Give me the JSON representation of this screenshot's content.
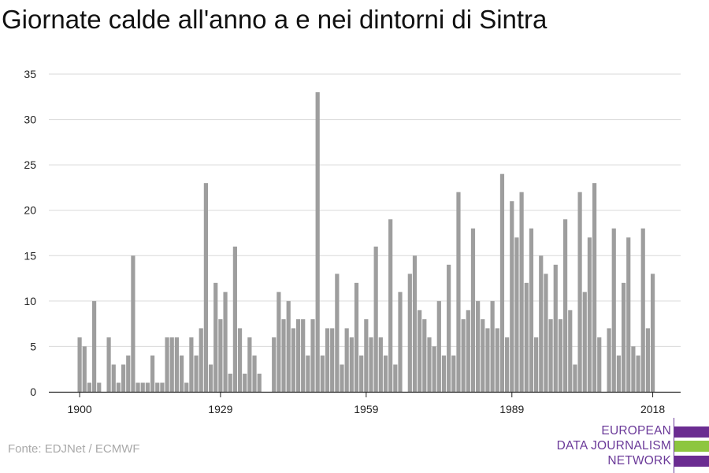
{
  "chart_data": {
    "type": "bar",
    "title": "Giornate calde all'anno a e nei dintorni di Sintra",
    "xlabel": "",
    "ylabel": "",
    "ylim": [
      0,
      35
    ],
    "yticks": [
      0,
      5,
      10,
      15,
      20,
      25,
      30,
      35
    ],
    "xticks": [
      1900,
      1929,
      1959,
      1989,
      2018
    ],
    "grid": true,
    "bar_color": "#9e9e9e",
    "x_start": 1900,
    "values": [
      6,
      5,
      1,
      10,
      1,
      0,
      6,
      3,
      1,
      3,
      4,
      15,
      1,
      1,
      1,
      4,
      1,
      1,
      6,
      6,
      6,
      4,
      1,
      6,
      4,
      7,
      23,
      3,
      12,
      8,
      11,
      2,
      16,
      7,
      2,
      6,
      4,
      2,
      0,
      0,
      6,
      11,
      8,
      10,
      7,
      8,
      8,
      4,
      8,
      33,
      4,
      7,
      7,
      13,
      3,
      7,
      6,
      12,
      4,
      8,
      6,
      16,
      6,
      4,
      19,
      3,
      11,
      0,
      13,
      15,
      9,
      8,
      6,
      5,
      10,
      4,
      14,
      4,
      22,
      8,
      9,
      18,
      10,
      8,
      7,
      10,
      7,
      24,
      6,
      21,
      17,
      22,
      12,
      18,
      6,
      15,
      13,
      8,
      14,
      8,
      19,
      9,
      3,
      22,
      11,
      17,
      23,
      6,
      0,
      7,
      18,
      4,
      12,
      17,
      5,
      4,
      18,
      7,
      13
    ]
  },
  "source": "Fonte: EDJNet / ECMWF",
  "logo": {
    "lines": [
      "EUROPEAN",
      "DATA JOURNALISM",
      "NETWORK"
    ],
    "colors": {
      "purple": "#6b2c91",
      "green": "#8dc63f"
    }
  }
}
